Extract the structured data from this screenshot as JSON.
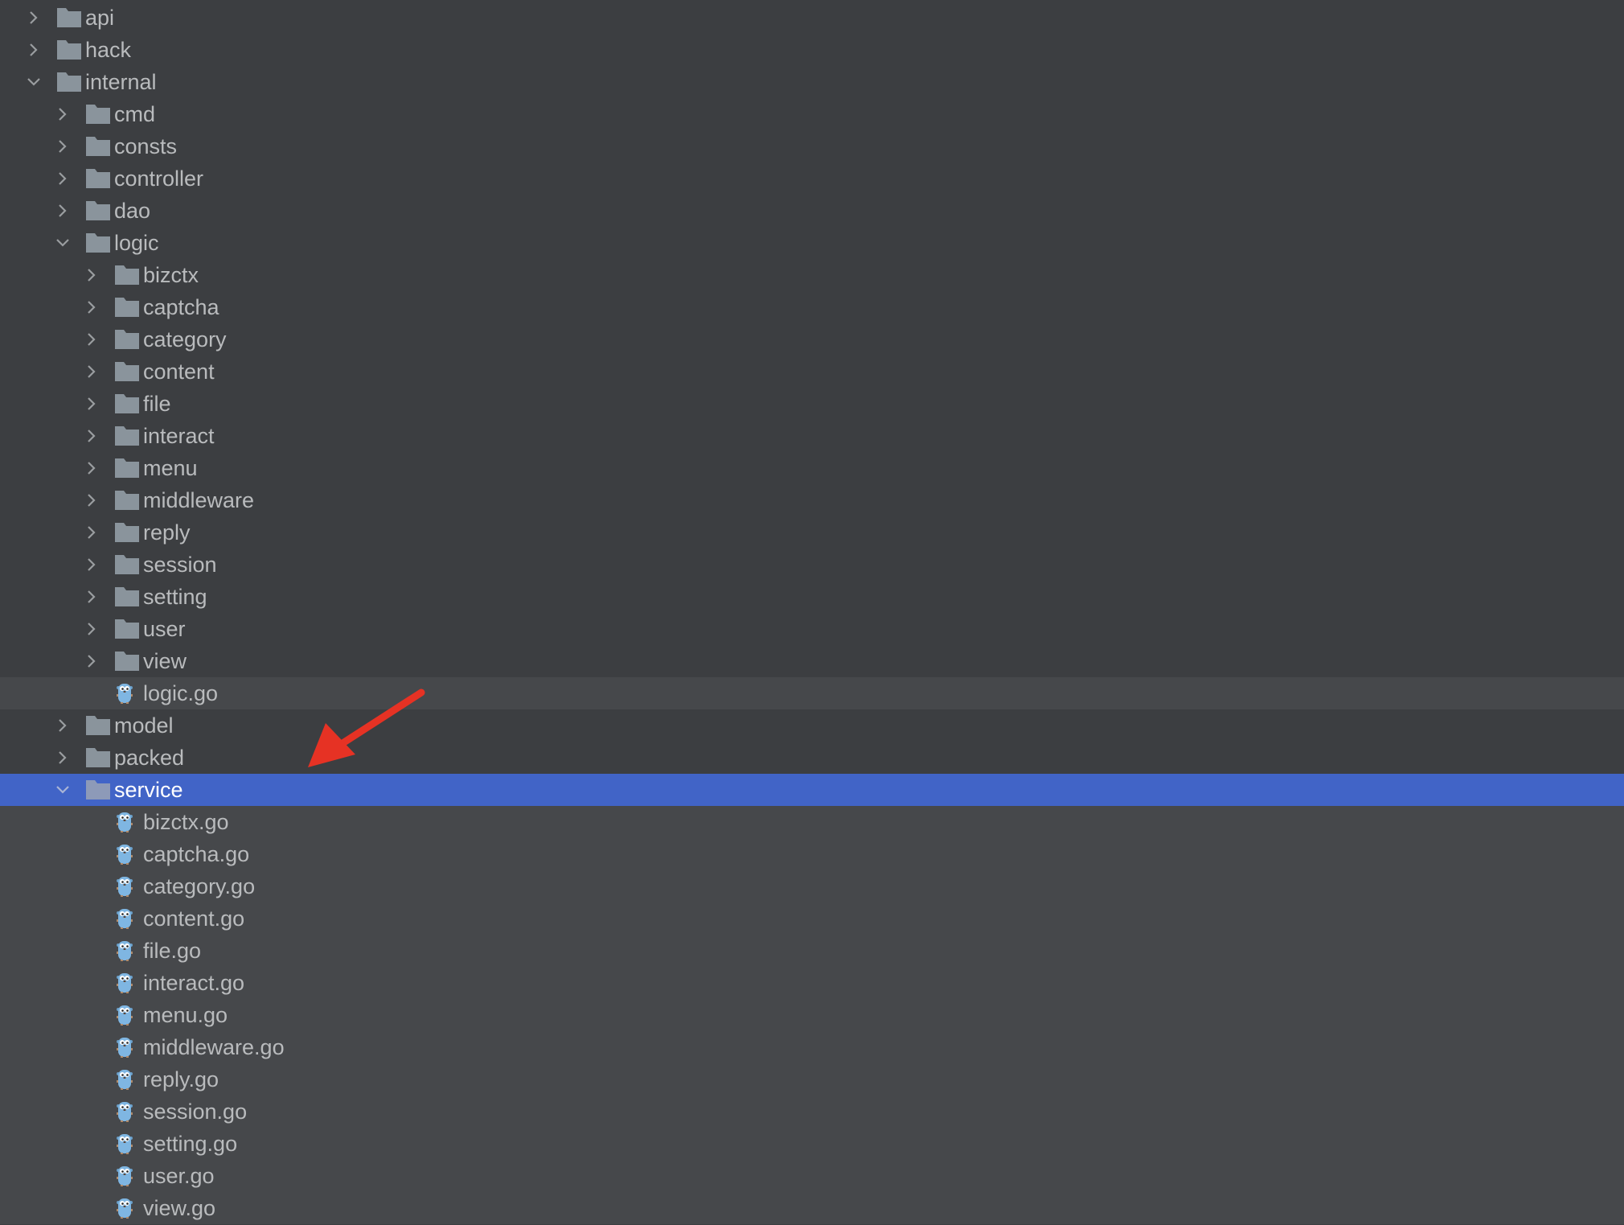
{
  "colors": {
    "background": "#3c3e41",
    "selection": "#4164c7",
    "hover": "#46484b",
    "text": "#b9bbbd",
    "folder_icon": "#8a949c",
    "go_file_icon": "#7fb6e2",
    "annotation_arrow": "#e63224"
  },
  "tree": [
    {
      "label": "api",
      "level": 0,
      "type": "folder",
      "expanded": false
    },
    {
      "label": "hack",
      "level": 0,
      "type": "folder",
      "expanded": false
    },
    {
      "label": "internal",
      "level": 0,
      "type": "folder",
      "expanded": true
    },
    {
      "label": "cmd",
      "level": 1,
      "type": "folder",
      "expanded": false
    },
    {
      "label": "consts",
      "level": 1,
      "type": "folder",
      "expanded": false
    },
    {
      "label": "controller",
      "level": 1,
      "type": "folder",
      "expanded": false
    },
    {
      "label": "dao",
      "level": 1,
      "type": "folder",
      "expanded": false
    },
    {
      "label": "logic",
      "level": 1,
      "type": "folder",
      "expanded": true
    },
    {
      "label": "bizctx",
      "level": 2,
      "type": "folder",
      "expanded": false
    },
    {
      "label": "captcha",
      "level": 2,
      "type": "folder",
      "expanded": false
    },
    {
      "label": "category",
      "level": 2,
      "type": "folder",
      "expanded": false
    },
    {
      "label": "content",
      "level": 2,
      "type": "folder",
      "expanded": false
    },
    {
      "label": "file",
      "level": 2,
      "type": "folder",
      "expanded": false
    },
    {
      "label": "interact",
      "level": 2,
      "type": "folder",
      "expanded": false
    },
    {
      "label": "menu",
      "level": 2,
      "type": "folder",
      "expanded": false
    },
    {
      "label": "middleware",
      "level": 2,
      "type": "folder",
      "expanded": false
    },
    {
      "label": "reply",
      "level": 2,
      "type": "folder",
      "expanded": false
    },
    {
      "label": "session",
      "level": 2,
      "type": "folder",
      "expanded": false
    },
    {
      "label": "setting",
      "level": 2,
      "type": "folder",
      "expanded": false
    },
    {
      "label": "user",
      "level": 2,
      "type": "folder",
      "expanded": false
    },
    {
      "label": "view",
      "level": 2,
      "type": "folder",
      "expanded": false
    },
    {
      "label": "logic.go",
      "level": 2,
      "type": "go-file",
      "hover": true
    },
    {
      "label": "model",
      "level": 1,
      "type": "folder",
      "expanded": false
    },
    {
      "label": "packed",
      "level": 1,
      "type": "folder",
      "expanded": false
    },
    {
      "label": "service",
      "level": 1,
      "type": "folder",
      "expanded": true,
      "selected": true
    },
    {
      "label": "bizctx.go",
      "level": 2,
      "type": "go-file"
    },
    {
      "label": "captcha.go",
      "level": 2,
      "type": "go-file"
    },
    {
      "label": "category.go",
      "level": 2,
      "type": "go-file"
    },
    {
      "label": "content.go",
      "level": 2,
      "type": "go-file"
    },
    {
      "label": "file.go",
      "level": 2,
      "type": "go-file"
    },
    {
      "label": "interact.go",
      "level": 2,
      "type": "go-file"
    },
    {
      "label": "menu.go",
      "level": 2,
      "type": "go-file"
    },
    {
      "label": "middleware.go",
      "level": 2,
      "type": "go-file"
    },
    {
      "label": "reply.go",
      "level": 2,
      "type": "go-file"
    },
    {
      "label": "session.go",
      "level": 2,
      "type": "go-file"
    },
    {
      "label": "setting.go",
      "level": 2,
      "type": "go-file"
    },
    {
      "label": "user.go",
      "level": 2,
      "type": "go-file"
    },
    {
      "label": "view.go",
      "level": 2,
      "type": "go-file"
    }
  ]
}
